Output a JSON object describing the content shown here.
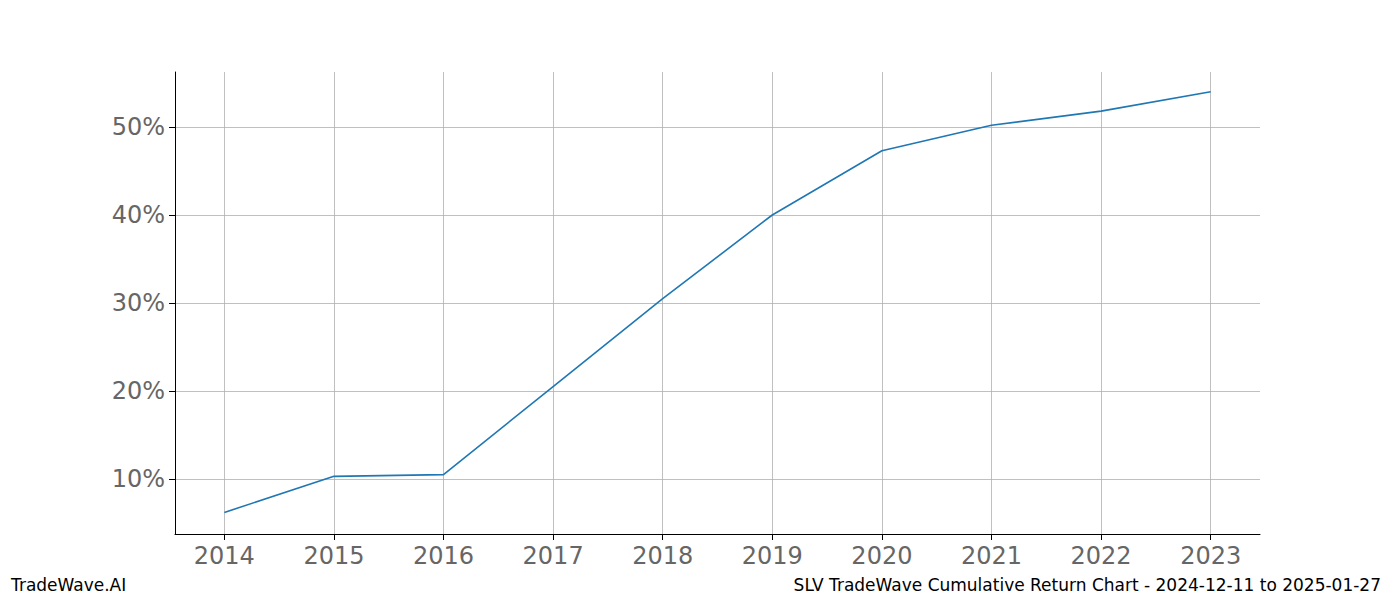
{
  "chart_data": {
    "type": "line",
    "title": "SLV TradeWave Cumulative Return Chart - 2024-12-11 to 2025-01-27",
    "annotations": [
      "TradeWave.AI"
    ],
    "x": [
      2014,
      2015,
      2016,
      2017,
      2018,
      2019,
      2020,
      2021,
      2022,
      2023
    ],
    "values": [
      6.2,
      10.3,
      10.5,
      20.5,
      30.5,
      40.0,
      47.3,
      50.2,
      51.8,
      54.0
    ],
    "color": "#1f77b4",
    "xlim": [
      2013.55,
      2023.45
    ],
    "xticks": [
      2014,
      2015,
      2016,
      2017,
      2018,
      2019,
      2020,
      2021,
      2022,
      2023
    ],
    "ylim": [
      3.75,
      56.25
    ],
    "yticks": [
      {
        "value": 10,
        "label": "10%"
      },
      {
        "value": 20,
        "label": "20%"
      },
      {
        "value": 30,
        "label": "30%"
      },
      {
        "value": 40,
        "label": "40%"
      },
      {
        "value": 50,
        "label": "50%"
      }
    ],
    "grid": true
  }
}
